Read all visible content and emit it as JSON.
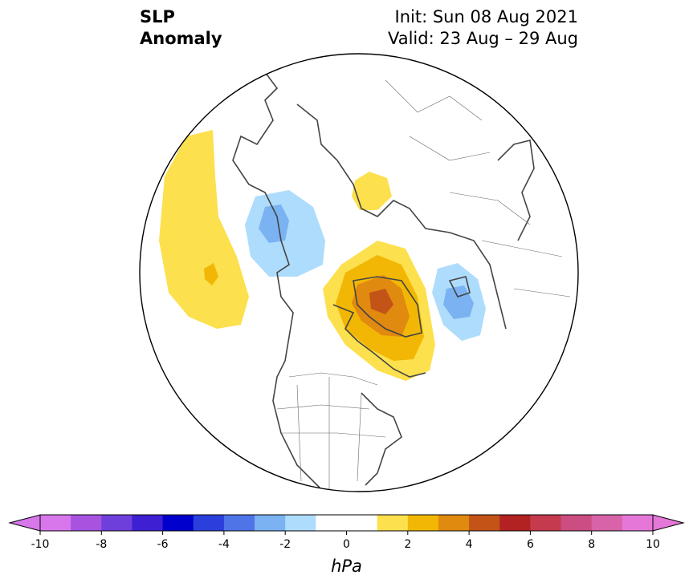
{
  "title": {
    "left_line1": "SLP",
    "left_line2": "Anomaly",
    "init": "Init: Sun 08 Aug 2021",
    "valid": "Valid: 23 Aug – 29 Aug"
  },
  "map": {
    "projection": "north-polar-stereographic",
    "region": "Northern Hemisphere centered on Arctic, North America at bottom",
    "features": [
      {
        "name": "Alaska/Bering high anomaly",
        "level": 1,
        "color": "#fde04d"
      },
      {
        "name": "Aleutian secondary high core",
        "level": 2,
        "color": "#f2b705"
      },
      {
        "name": "East Siberia low anomaly",
        "level": -2,
        "color": "#7ab2f2"
      },
      {
        "name": "Central Arctic high anomaly",
        "level": 1,
        "color": "#fde04d"
      },
      {
        "name": "Greenland high anomaly",
        "level": 5,
        "color": "#c45318"
      },
      {
        "name": "Norwegian Sea low anomaly",
        "level": -2,
        "color": "#7ab2f2"
      }
    ]
  },
  "colorbar": {
    "unit": "hPa",
    "ticks": [
      "-10",
      "-8",
      "-6",
      "-4",
      "-2",
      "0",
      "2",
      "4",
      "6",
      "8",
      "10"
    ],
    "bounds": [
      -10,
      10
    ],
    "colors": [
      "#d877ec",
      "#a753e0",
      "#6f3fdc",
      "#3f1fd2",
      "#0000cc",
      "#2a3fdb",
      "#4f74e8",
      "#7ab2f2",
      "#aedcfc",
      "#ffffff",
      "#ffffff",
      "#fde04d",
      "#f2b705",
      "#e08a10",
      "#c45318",
      "#b22222",
      "#c53a4d",
      "#cc4d82",
      "#d863a8",
      "#e477d7"
    ],
    "under_color": "#d877ec",
    "over_color": "#e477d7"
  }
}
